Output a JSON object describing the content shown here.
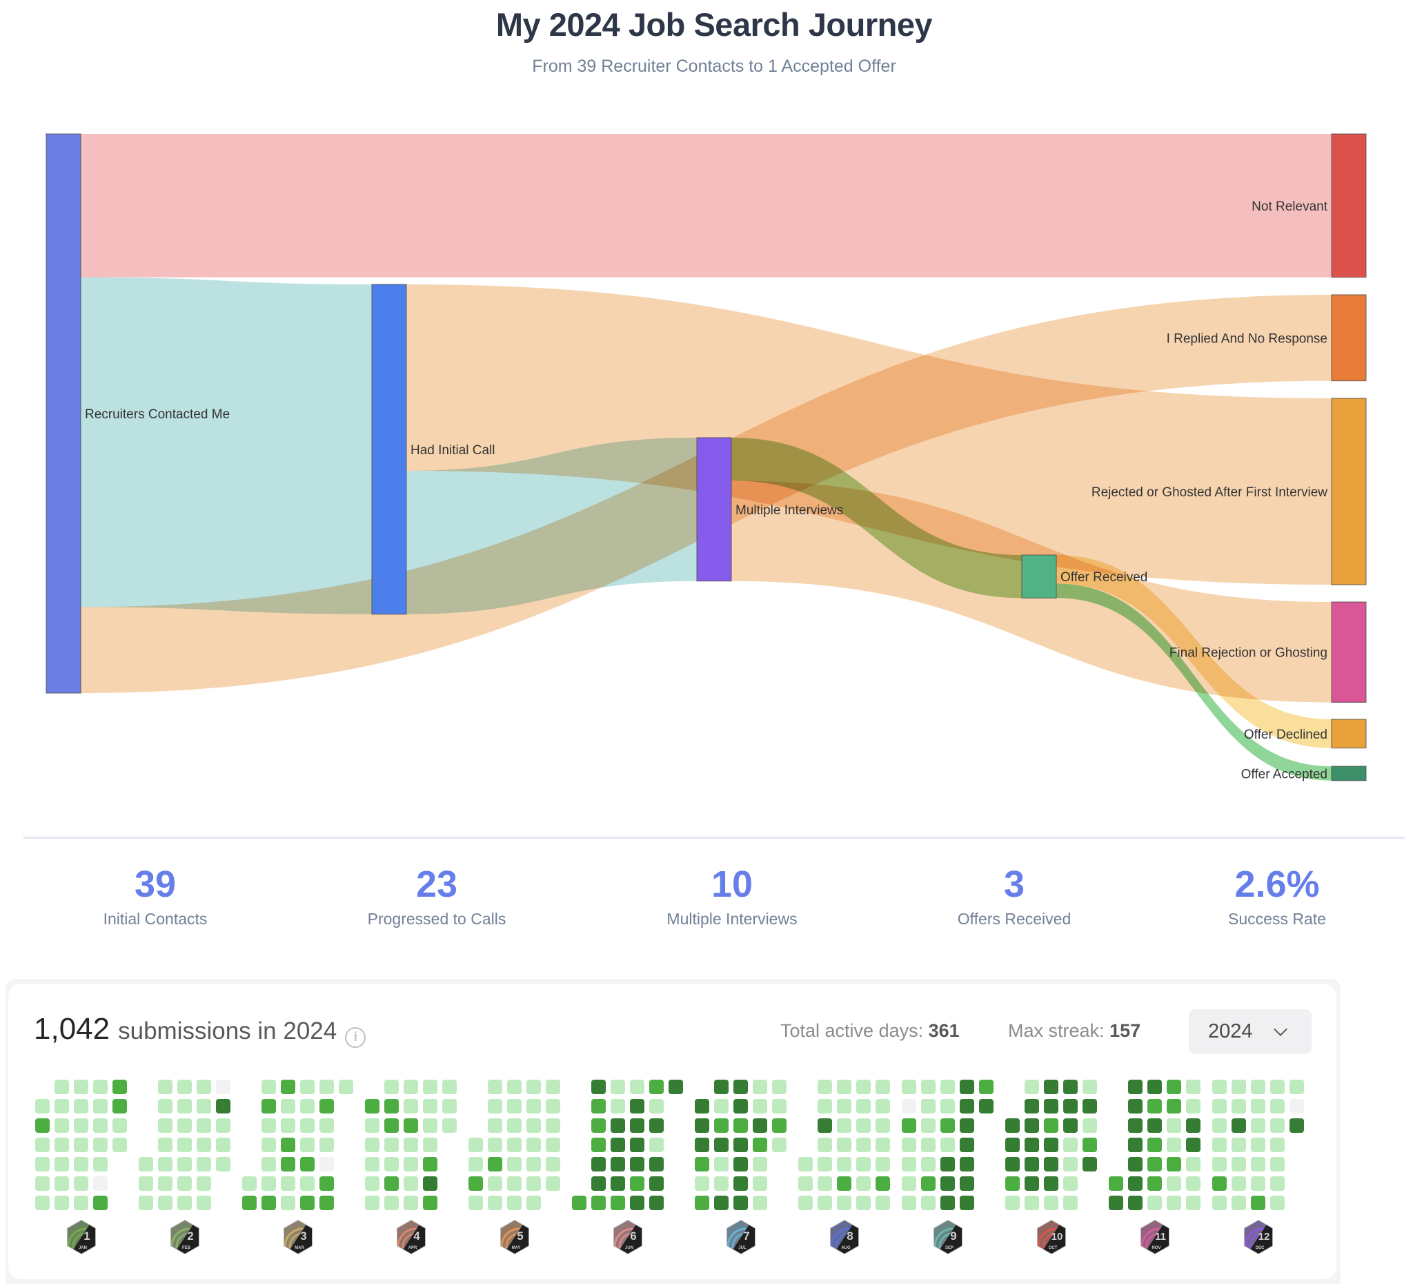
{
  "header": {
    "title": "My 2024 Job Search Journey",
    "subtitle": "From 39 Recruiter Contacts to 1 Accepted Offer"
  },
  "chart_data": {
    "type": "sankey",
    "title": "My 2024 Job Search Journey",
    "subtitle": "From 39 Recruiter Contacts to 1 Accepted Offer",
    "nodes": [
      {
        "id": "recruiters",
        "label": "Recruiters Contacted Me",
        "color": "#6b7ee3",
        "column": 0,
        "label_side": "right"
      },
      {
        "id": "initial_call",
        "label": "Had Initial Call",
        "color": "#4d7fec",
        "column": 1,
        "label_side": "right"
      },
      {
        "id": "multiple",
        "label": "Multiple Interviews",
        "color": "#865cec",
        "column": 2,
        "label_side": "right"
      },
      {
        "id": "offer_received",
        "label": "Offer Received",
        "color": "#52b386",
        "column": 3,
        "label_side": "right"
      },
      {
        "id": "not_relevant",
        "label": "Not Relevant",
        "color": "#dd524c",
        "column": 4,
        "label_side": "left"
      },
      {
        "id": "replied",
        "label": "I Replied And No Response",
        "color": "#e87b37",
        "column": 4,
        "label_side": "left"
      },
      {
        "id": "rejected_first",
        "label": "Rejected or Ghosted After First Interview",
        "color": "#e9a13b",
        "column": 4,
        "label_side": "left"
      },
      {
        "id": "final_rejection",
        "label": "Final Rejection or Ghosting",
        "color": "#d95797",
        "column": 4,
        "label_side": "left"
      },
      {
        "id": "offer_declined",
        "label": "Offer Declined",
        "color": "#e9a13b",
        "column": 4,
        "label_side": "left"
      },
      {
        "id": "offer_accepted",
        "label": "Offer Accepted",
        "color": "#3d8f6a",
        "column": 4,
        "label_side": "left"
      }
    ],
    "links": [
      {
        "source": "recruiters",
        "target": "not_relevant",
        "value": 10,
        "color": "#f4b4b4"
      },
      {
        "source": "recruiters",
        "target": "initial_call",
        "value": 23,
        "color": "#b0dcdc"
      },
      {
        "source": "recruiters",
        "target": "replied",
        "value": 6,
        "color": "#f6cca2"
      },
      {
        "source": "initial_call",
        "target": "rejected_first",
        "value": 13,
        "color": "#f6cca2"
      },
      {
        "source": "initial_call",
        "target": "multiple",
        "value": 10,
        "color": "#b0dcdc"
      },
      {
        "source": "multiple",
        "target": "offer_received",
        "value": 3,
        "color": "#9ccb7d"
      },
      {
        "source": "multiple",
        "target": "final_rejection",
        "value": 7,
        "color": "#f6cca2"
      },
      {
        "source": "offer_received",
        "target": "offer_declined",
        "value": 2,
        "color": "#f8d98a"
      },
      {
        "source": "offer_received",
        "target": "offer_accepted",
        "value": 1,
        "color": "#7dcf86"
      }
    ]
  },
  "stats": [
    {
      "value": "39",
      "label": "Initial Contacts"
    },
    {
      "value": "23",
      "label": "Progressed to Calls"
    },
    {
      "value": "10",
      "label": "Multiple Interviews"
    },
    {
      "value": "3",
      "label": "Offers Received"
    },
    {
      "value": "2.6%",
      "label": "Success Rate"
    }
  ],
  "submissions": {
    "count": "1,042",
    "text": "submissions in 2024",
    "info_icon": "info-icon",
    "total_active_days_label": "Total active days:",
    "total_active_days": "361",
    "max_streak_label": "Max streak:",
    "max_streak": "157",
    "year_selected": "2024",
    "level_colors": [
      "#f2f2f2",
      "#bdebbd",
      "#4cae41",
      "#347d32"
    ],
    "months": [
      {
        "num": "1",
        "abbr": "JAN",
        "badge_color": "#6fae4a",
        "grid": [
          [
            -1,
            1,
            1,
            1,
            2
          ],
          [
            1,
            1,
            1,
            1,
            2
          ],
          [
            2,
            1,
            1,
            1,
            1
          ],
          [
            1,
            1,
            1,
            1,
            1
          ],
          [
            1,
            1,
            1,
            1,
            -1
          ],
          [
            1,
            1,
            1,
            0,
            -1
          ],
          [
            1,
            1,
            1,
            2,
            -1
          ]
        ]
      },
      {
        "num": "2",
        "abbr": "FEB",
        "badge_color": "#8bb36a",
        "grid": [
          [
            -1,
            1,
            1,
            1,
            0
          ],
          [
            -1,
            1,
            1,
            1,
            3
          ],
          [
            -1,
            1,
            1,
            1,
            1
          ],
          [
            -1,
            1,
            1,
            1,
            1
          ],
          [
            1,
            1,
            1,
            1,
            1
          ],
          [
            1,
            1,
            1,
            1,
            -1
          ],
          [
            1,
            1,
            1,
            1,
            -1
          ]
        ]
      },
      {
        "num": "3",
        "abbr": "MAR",
        "badge_color": "#c9aa6a",
        "grid": [
          [
            -1,
            1,
            2,
            1,
            1,
            1
          ],
          [
            -1,
            2,
            1,
            1,
            2,
            -1
          ],
          [
            -1,
            1,
            1,
            1,
            1,
            -1
          ],
          [
            -1,
            1,
            2,
            1,
            1,
            -1
          ],
          [
            -1,
            1,
            2,
            2,
            0,
            -1
          ],
          [
            1,
            1,
            1,
            1,
            2,
            -1
          ],
          [
            2,
            2,
            1,
            2,
            2,
            -1
          ]
        ]
      },
      {
        "num": "4",
        "abbr": "APR",
        "badge_color": "#d9866a",
        "grid": [
          [
            -1,
            1,
            1,
            1,
            1
          ],
          [
            2,
            2,
            1,
            1,
            1
          ],
          [
            1,
            2,
            2,
            1,
            1
          ],
          [
            1,
            1,
            1,
            1,
            -1
          ],
          [
            1,
            1,
            1,
            2,
            -1
          ],
          [
            1,
            2,
            1,
            3,
            -1
          ],
          [
            1,
            1,
            1,
            2,
            -1
          ]
        ]
      },
      {
        "num": "5",
        "abbr": "MAY",
        "badge_color": "#e0945a",
        "grid": [
          [
            -1,
            1,
            1,
            1,
            1
          ],
          [
            -1,
            1,
            1,
            1,
            1
          ],
          [
            -1,
            1,
            1,
            1,
            1
          ],
          [
            1,
            1,
            1,
            1,
            1
          ],
          [
            1,
            2,
            1,
            1,
            1
          ],
          [
            2,
            1,
            1,
            1,
            1
          ],
          [
            1,
            1,
            1,
            1,
            -1
          ]
        ]
      },
      {
        "num": "6",
        "abbr": "JUN",
        "badge_color": "#e08a8a",
        "grid": [
          [
            -1,
            3,
            1,
            1,
            2,
            3
          ],
          [
            -1,
            2,
            1,
            3,
            1,
            -1
          ],
          [
            -1,
            2,
            3,
            3,
            3,
            -1
          ],
          [
            -1,
            2,
            3,
            3,
            1,
            -1
          ],
          [
            -1,
            3,
            3,
            3,
            3,
            -1
          ],
          [
            -1,
            3,
            3,
            2,
            3,
            -1
          ],
          [
            2,
            2,
            2,
            3,
            3,
            -1
          ]
        ]
      },
      {
        "num": "7",
        "abbr": "JUL",
        "badge_color": "#6ab0d9",
        "grid": [
          [
            -1,
            3,
            3,
            1,
            1
          ],
          [
            3,
            1,
            3,
            1,
            1
          ],
          [
            3,
            2,
            2,
            3,
            2
          ],
          [
            3,
            3,
            3,
            2,
            1
          ],
          [
            2,
            1,
            3,
            1,
            -1
          ],
          [
            1,
            1,
            3,
            1,
            -1
          ],
          [
            2,
            3,
            3,
            1,
            -1
          ]
        ]
      },
      {
        "num": "8",
        "abbr": "AUG",
        "badge_color": "#5a6ed9",
        "grid": [
          [
            -1,
            1,
            1,
            1,
            1
          ],
          [
            -1,
            1,
            1,
            1,
            1
          ],
          [
            -1,
            3,
            1,
            1,
            1
          ],
          [
            -1,
            1,
            1,
            1,
            1
          ],
          [
            1,
            1,
            1,
            1,
            1
          ],
          [
            1,
            1,
            2,
            1,
            2
          ],
          [
            1,
            1,
            1,
            1,
            1
          ]
        ]
      },
      {
        "num": "9",
        "abbr": "SEP",
        "badge_color": "#6ab8b0",
        "grid": [
          [
            1,
            1,
            1,
            3,
            2
          ],
          [
            0,
            1,
            1,
            3,
            3
          ],
          [
            2,
            1,
            2,
            3,
            -1
          ],
          [
            1,
            1,
            1,
            3,
            -1
          ],
          [
            1,
            1,
            3,
            3,
            -1
          ],
          [
            1,
            2,
            3,
            3,
            -1
          ],
          [
            1,
            1,
            3,
            3,
            -1
          ]
        ]
      },
      {
        "num": "10",
        "abbr": "OCT",
        "badge_color": "#d9574a",
        "grid": [
          [
            -1,
            1,
            3,
            3,
            1
          ],
          [
            -1,
            3,
            3,
            3,
            3
          ],
          [
            3,
            3,
            2,
            3,
            1
          ],
          [
            3,
            3,
            3,
            1,
            2
          ],
          [
            3,
            3,
            3,
            1,
            3
          ],
          [
            2,
            3,
            3,
            1,
            -1
          ],
          [
            1,
            1,
            1,
            1,
            -1
          ]
        ]
      },
      {
        "num": "11",
        "abbr": "NOV",
        "badge_color": "#d95aa0",
        "grid": [
          [
            -1,
            3,
            3,
            2,
            1
          ],
          [
            -1,
            3,
            2,
            2,
            1
          ],
          [
            -1,
            3,
            3,
            1,
            3
          ],
          [
            -1,
            3,
            2,
            1,
            3
          ],
          [
            -1,
            3,
            2,
            2,
            1
          ],
          [
            2,
            3,
            2,
            1,
            1
          ],
          [
            3,
            3,
            1,
            1,
            1
          ]
        ]
      },
      {
        "num": "12",
        "abbr": "DEC",
        "badge_color": "#8a5ae0",
        "grid": [
          [
            1,
            1,
            1,
            1,
            1
          ],
          [
            1,
            1,
            1,
            1,
            0
          ],
          [
            1,
            3,
            1,
            1,
            3
          ],
          [
            1,
            1,
            1,
            1,
            -1
          ],
          [
            1,
            1,
            1,
            1,
            -1
          ],
          [
            2,
            1,
            1,
            1,
            -1
          ],
          [
            1,
            1,
            2,
            1,
            -1
          ]
        ]
      }
    ]
  }
}
